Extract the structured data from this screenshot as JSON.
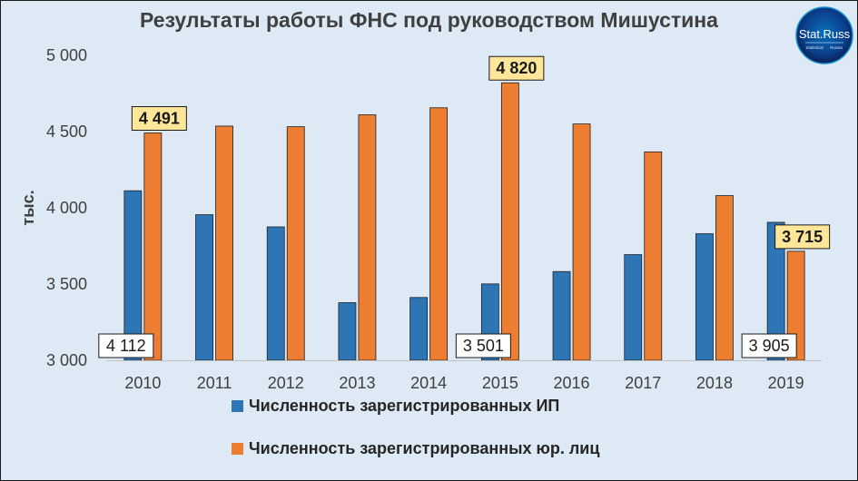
{
  "title": "Результаты работы ФНС под руководством Мишустина",
  "logo": {
    "text": "Stat.Russ",
    "subtext_left": "Statistical",
    "subtext_right": "Russia"
  },
  "chart_data": {
    "type": "bar",
    "title": "Результаты работы ФНС под руководством Мишустина",
    "ylabel": "тыс.",
    "xlabel": "",
    "ylim": [
      3000,
      5000
    ],
    "yticks": [
      3000,
      3500,
      4000,
      4500,
      5000
    ],
    "ytick_labels": [
      "3 000",
      "3 500",
      "4 000",
      "4 500",
      "5 000"
    ],
    "grid": false,
    "legend_position": "bottom",
    "categories": [
      "2010",
      "2011",
      "2012",
      "2013",
      "2014",
      "2015",
      "2016",
      "2017",
      "2018",
      "2019"
    ],
    "series": [
      {
        "name": "Численность зарегистрированных ИП",
        "color": "#2e75b6",
        "values": [
          4112,
          3955,
          3875,
          3378,
          3412,
          3501,
          3582,
          3693,
          3830,
          3905
        ]
      },
      {
        "name": "Численность зарегистрированных юр. лиц",
        "color": "#ed7d31",
        "values": [
          4491,
          4536,
          4532,
          4610,
          4656,
          4820,
          4550,
          4367,
          4080,
          3715
        ]
      }
    ],
    "annotations": [
      {
        "series": 0,
        "category": "2010",
        "text": "4 112",
        "style": "white"
      },
      {
        "series": 0,
        "category": "2015",
        "text": "3 501",
        "style": "white"
      },
      {
        "series": 0,
        "category": "2019",
        "text": "3 905",
        "style": "white"
      },
      {
        "series": 1,
        "category": "2010",
        "text": "4 491",
        "style": "yellow"
      },
      {
        "series": 1,
        "category": "2015",
        "text": "4 820",
        "style": "yellow"
      },
      {
        "series": 1,
        "category": "2019",
        "text": "3 715",
        "style": "yellow"
      }
    ]
  }
}
